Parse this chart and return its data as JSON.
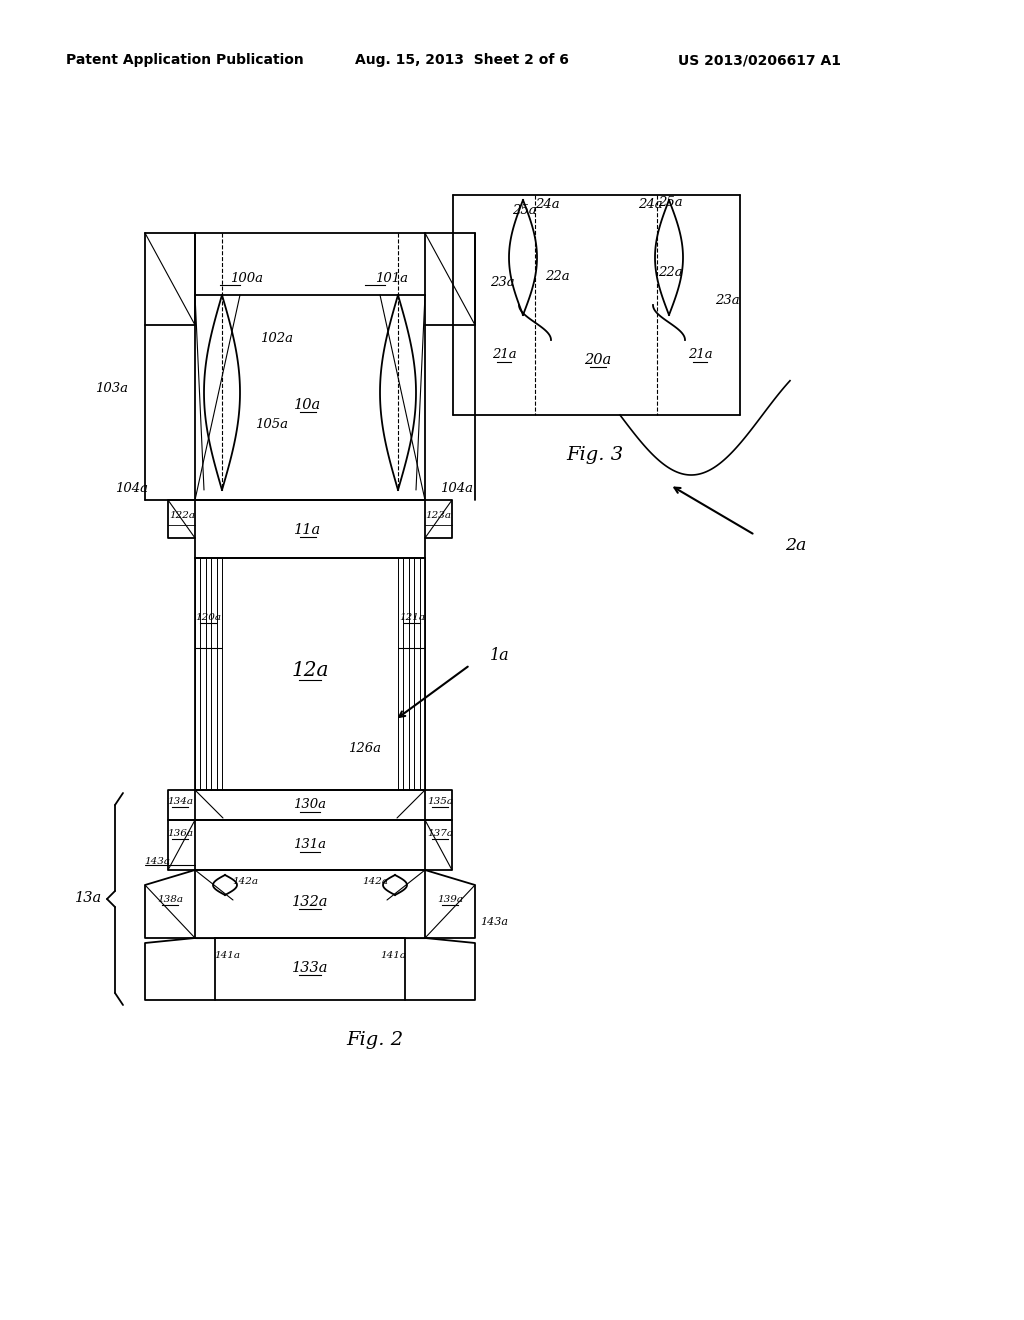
{
  "bg_color": "#ffffff",
  "line_color": "#000000",
  "header_left": "Patent Application Publication",
  "header_center": "Aug. 15, 2013  Sheet 2 of 6",
  "header_right": "US 2013/0206617 A1",
  "fig2_label": "Fig. 2",
  "fig3_label": "Fig. 3",
  "label_1a": "1a",
  "label_2a": "2a",
  "label_10a": "10a",
  "label_11a": "11a",
  "label_12a": "12a",
  "label_13a": "13a",
  "label_100a": "100a",
  "label_101a": "101a",
  "label_102a": "102a",
  "label_103a": "103a",
  "label_104a": "104a",
  "label_105a": "105a",
  "label_120a": "120a",
  "label_121a": "121a",
  "label_122a": "122a",
  "label_123a": "123a",
  "label_126a": "126a",
  "label_130a": "130a",
  "label_131a": "131a",
  "label_132a": "132a",
  "label_133a": "133a",
  "label_134a": "134a",
  "label_135a": "135a",
  "label_136a": "136a",
  "label_137a": "137a",
  "label_138a": "138a",
  "label_139a": "139a",
  "label_141a": "141a",
  "label_142a": "142a",
  "label_143a": "143a",
  "label_20a": "20a",
  "label_21a": "21a",
  "label_22a": "22a",
  "label_23a": "23a",
  "label_24a": "24a",
  "label_25a": "25a"
}
